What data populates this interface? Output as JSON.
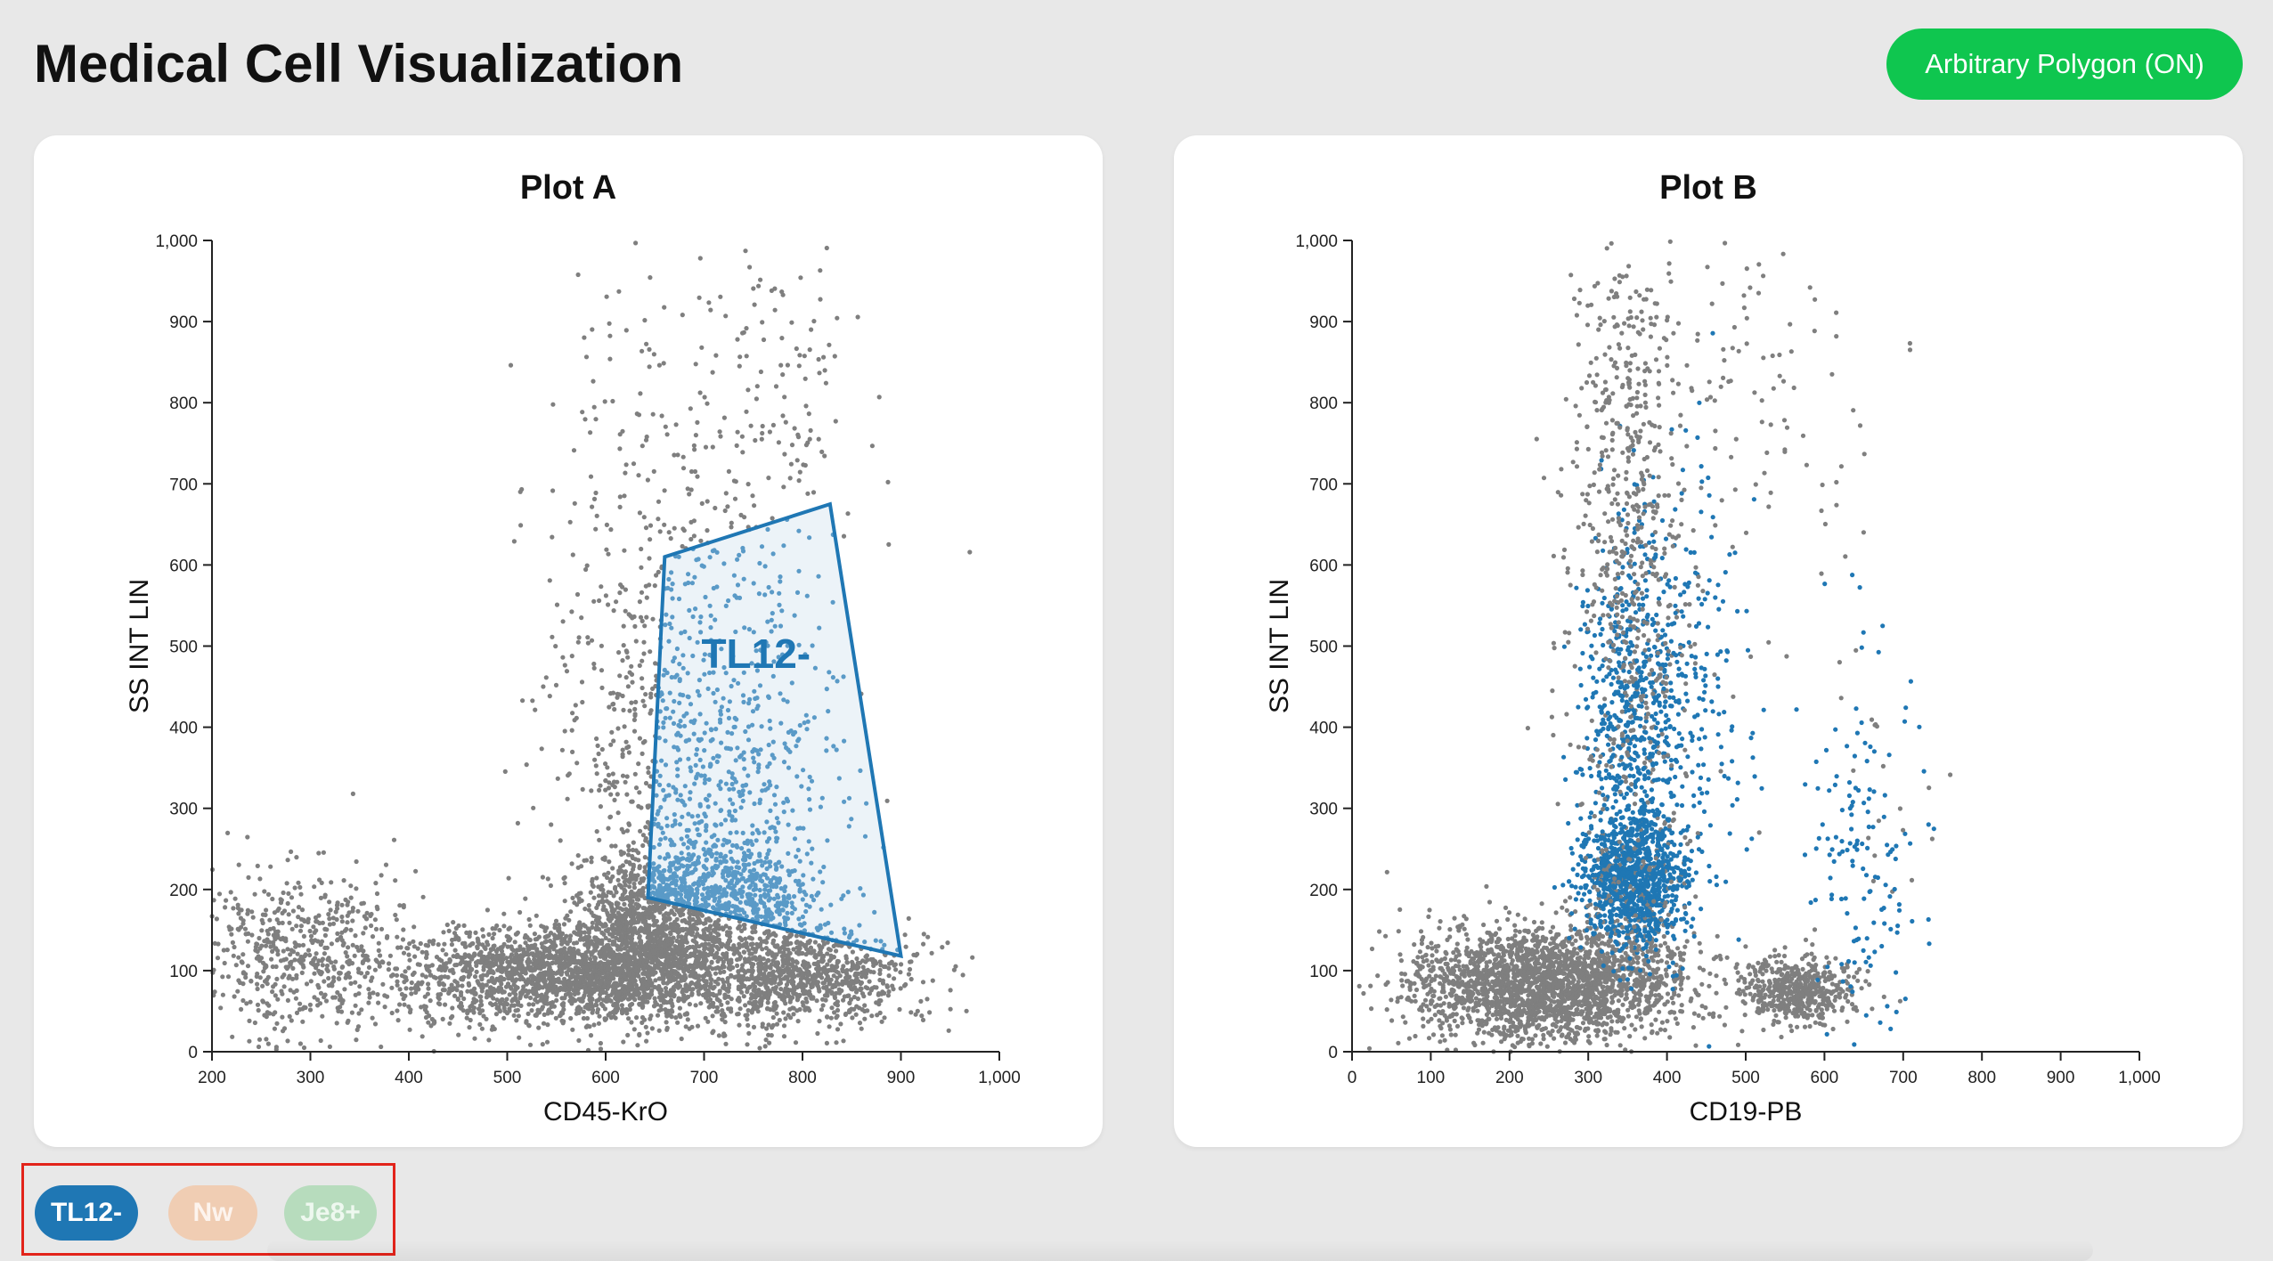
{
  "app": {
    "title": "Medical Cell Visualization",
    "mode_button_label": "Arbitrary Polygon (ON)"
  },
  "colors": {
    "background": "#e8e8e8",
    "accent_green": "#0fc64f",
    "gated_points": "#1f77b4",
    "ungated_points": "#7f7f7f",
    "highlight_border": "#e2231a"
  },
  "legend": {
    "chips": [
      {
        "label": "TL12-",
        "active": true,
        "color": "#1f77b4"
      },
      {
        "label": "Nw",
        "active": false,
        "color": "#f0cdb3"
      },
      {
        "label": "Je8+",
        "active": false,
        "color": "#b7dcbd"
      }
    ]
  },
  "chart_data": [
    {
      "type": "scatter",
      "title": "Plot A",
      "xlabel": "CD45-KrO",
      "ylabel": "SS INT LIN",
      "xlim": [
        200,
        1000
      ],
      "ylim": [
        0,
        1000
      ],
      "x_ticks": [
        "200",
        "300",
        "400",
        "500",
        "600",
        "700",
        "800",
        "900",
        "1,000"
      ],
      "y_ticks": [
        "0",
        "100",
        "200",
        "300",
        "400",
        "500",
        "600",
        "700",
        "800",
        "900",
        "1,000"
      ],
      "gate": {
        "name": "TL12-",
        "vertices": [
          [
            660,
            610
          ],
          [
            828,
            675
          ],
          [
            900,
            118
          ],
          [
            643,
            190
          ]
        ]
      },
      "series": [
        {
          "name": "TL12-",
          "color": "#1f77b4"
        }
      ],
      "clusters": [
        {
          "cx": 570,
          "cy": 95,
          "sx": 90,
          "sy": 30,
          "n": 2200
        },
        {
          "cx": 640,
          "cy": 150,
          "sx": 35,
          "sy": 45,
          "n": 900
        },
        {
          "cx": 800,
          "cy": 95,
          "sx": 55,
          "sy": 30,
          "n": 900
        },
        {
          "cx": 290,
          "cy": 120,
          "sx": 60,
          "sy": 55,
          "n": 600
        },
        {
          "cx": 700,
          "cy": 300,
          "sx": 70,
          "sy": 150,
          "n": 900
        },
        {
          "cx": 720,
          "cy": 200,
          "sx": 45,
          "sy": 30,
          "n": 500
        },
        {
          "cx": 650,
          "cy": 580,
          "sx": 60,
          "sy": 200,
          "n": 350
        },
        {
          "cx": 780,
          "cy": 800,
          "sx": 40,
          "sy": 120,
          "n": 120
        }
      ],
      "grid": false
    },
    {
      "type": "scatter",
      "title": "Plot B",
      "xlabel": "CD19-PB",
      "ylabel": "SS INT LIN",
      "xlim": [
        0,
        1000
      ],
      "ylim": [
        0,
        1000
      ],
      "x_ticks": [
        "0",
        "100",
        "200",
        "300",
        "400",
        "500",
        "600",
        "700",
        "800",
        "900",
        "1,000"
      ],
      "y_ticks": [
        "0",
        "100",
        "200",
        "300",
        "400",
        "500",
        "600",
        "700",
        "800",
        "900",
        "1,000"
      ],
      "series": [
        {
          "name": "TL12-",
          "color": "#1f77b4"
        }
      ],
      "clusters": [
        {
          "cx": 250,
          "cy": 85,
          "sx": 90,
          "sy": 35,
          "n": 2400,
          "gated": false
        },
        {
          "cx": 570,
          "cy": 75,
          "sx": 35,
          "sy": 20,
          "n": 500,
          "gated": false
        },
        {
          "cx": 360,
          "cy": 210,
          "sx": 35,
          "sy": 40,
          "n": 1100,
          "gated": true
        },
        {
          "cx": 355,
          "cy": 420,
          "sx": 30,
          "sy": 110,
          "n": 700,
          "gated": true
        },
        {
          "cx": 430,
          "cy": 450,
          "sx": 45,
          "sy": 130,
          "n": 200,
          "gated": true
        },
        {
          "cx": 650,
          "cy": 260,
          "sx": 40,
          "sy": 110,
          "n": 160,
          "gated": true
        },
        {
          "cx": 350,
          "cy": 680,
          "sx": 40,
          "sy": 180,
          "n": 500,
          "gated": false
        },
        {
          "cx": 480,
          "cy": 800,
          "sx": 100,
          "sy": 120,
          "n": 120,
          "gated": false
        }
      ],
      "grid": false
    }
  ]
}
